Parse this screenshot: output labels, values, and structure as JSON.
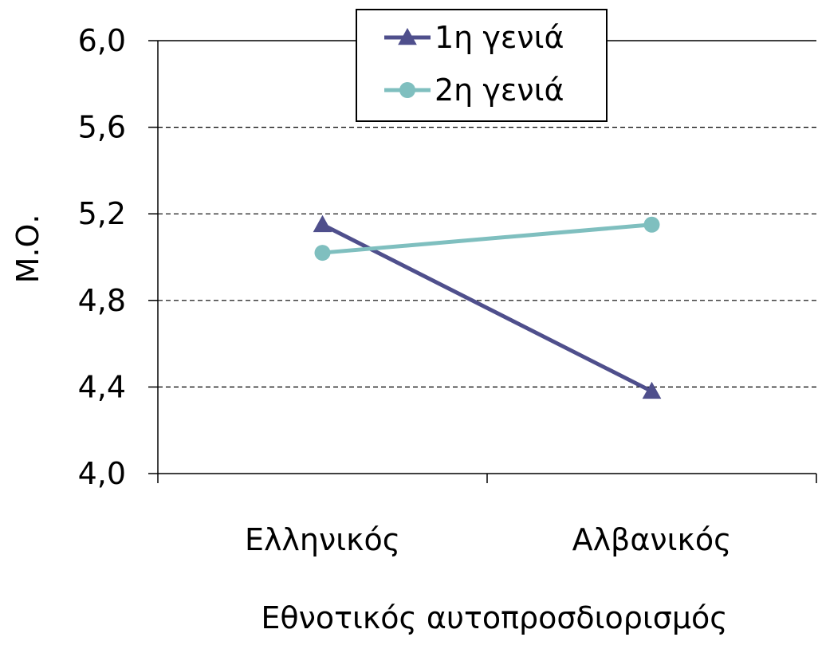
{
  "chart_data": {
    "type": "line",
    "categories": [
      "Ελληνικός",
      "Αλβανικός"
    ],
    "series": [
      {
        "name": "1η γενιά",
        "values": [
          5.15,
          4.38
        ],
        "color": "#4f4f8c",
        "marker": "triangle"
      },
      {
        "name": "2η γενιά",
        "values": [
          5.02,
          5.15
        ],
        "color": "#7fbfbf",
        "marker": "circle"
      }
    ],
    "title": "",
    "xlabel": "Εθνοτικός αυτοπροσδιορισμός",
    "ylabel": "Μ.Ο.",
    "ylim": [
      4.0,
      6.0
    ],
    "yticks": [
      4.0,
      4.4,
      4.8,
      5.2,
      5.6,
      6.0
    ],
    "ytick_labels": [
      "4,0",
      "4,4",
      "4,8",
      "5,2",
      "5,6",
      "6,0"
    ],
    "grid": "horizontal dashed",
    "legend_position": "top-center"
  }
}
